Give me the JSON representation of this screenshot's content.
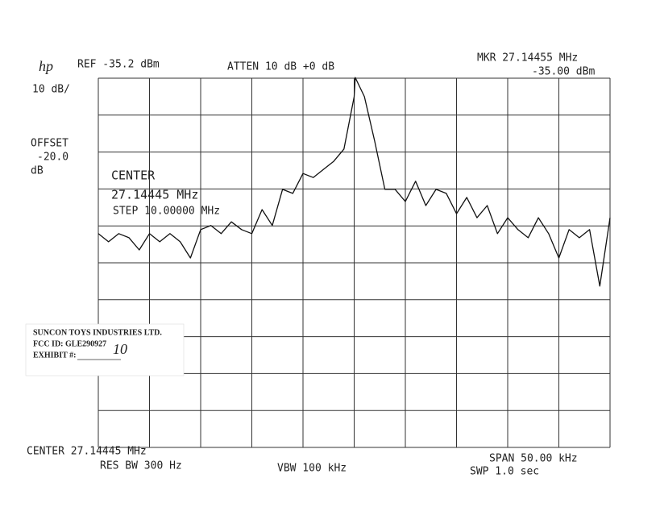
{
  "chart_data": {
    "type": "line",
    "logo": "hp",
    "annotations": [
      "REF -35.2 dBm",
      "ATTEN 10 dB +0 dB",
      "MKR 27.14455 MHz",
      "-35.00 dBm",
      "10 dB/",
      "OFFSET",
      "-20.0",
      "dB",
      "CENTER",
      "27.14445 MHz",
      "STEP 10.00000 MHz",
      "CENTER 27.14445 MHz",
      "RES BW 300 Hz",
      "VBW 100 kHz",
      "SPAN 50.00 kHz",
      "SWP 1.0 sec"
    ],
    "stamp": {
      "company": "SUNCON TOYS INDUSTRIES LTD.",
      "fcc_id": "FCC ID:  GLE290927",
      "exhibit": "EXHIBIT #:",
      "exhibit_number": "10"
    },
    "x": [
      27.11945,
      27.12045,
      27.12145,
      27.12245,
      27.12345,
      27.12445,
      27.12545,
      27.12645,
      27.12745,
      27.12845,
      27.12945,
      27.13045,
      27.13145,
      27.13245,
      27.13345,
      27.13445,
      27.13545,
      27.13645,
      27.13745,
      27.13845,
      27.13945,
      27.14045,
      27.14145,
      27.14245,
      27.14345,
      27.14445,
      27.14455,
      27.14545,
      27.14645,
      27.14745,
      27.14845,
      27.14945,
      27.15045,
      27.15145,
      27.15245,
      27.15345,
      27.15445,
      27.15545,
      27.15645,
      27.15745,
      27.15845,
      27.15945,
      27.16045,
      27.16145,
      27.16245,
      27.16345,
      27.16445,
      27.16545,
      27.16645,
      27.16745,
      27.16845,
      27.16945
    ],
    "values": [
      -77.3,
      -79.5,
      -77.3,
      -78.4,
      -81.7,
      -77.3,
      -79.5,
      -77.3,
      -79.5,
      -83.9,
      -76.2,
      -75.1,
      -77.3,
      -74.1,
      -76.2,
      -77.3,
      -70.8,
      -75.1,
      -65.3,
      -66.4,
      -61.0,
      -62.1,
      -59.9,
      -57.7,
      -54.4,
      -40.2,
      -35.0,
      -40.2,
      -52.2,
      -65.3,
      -65.3,
      -68.6,
      -63.1,
      -69.7,
      -65.3,
      -66.4,
      -71.9,
      -67.5,
      -73.0,
      -69.7,
      -77.3,
      -73.0,
      -76.2,
      -78.4,
      -73.0,
      -77.3,
      -83.9,
      -76.2,
      -78.4,
      -76.2,
      -91.5,
      -73.0
    ],
    "color": "#111111",
    "xlim": [
      27.11945,
      27.16945
    ],
    "ylim": [
      -135.2,
      -35.2
    ],
    "grid": true
  }
}
